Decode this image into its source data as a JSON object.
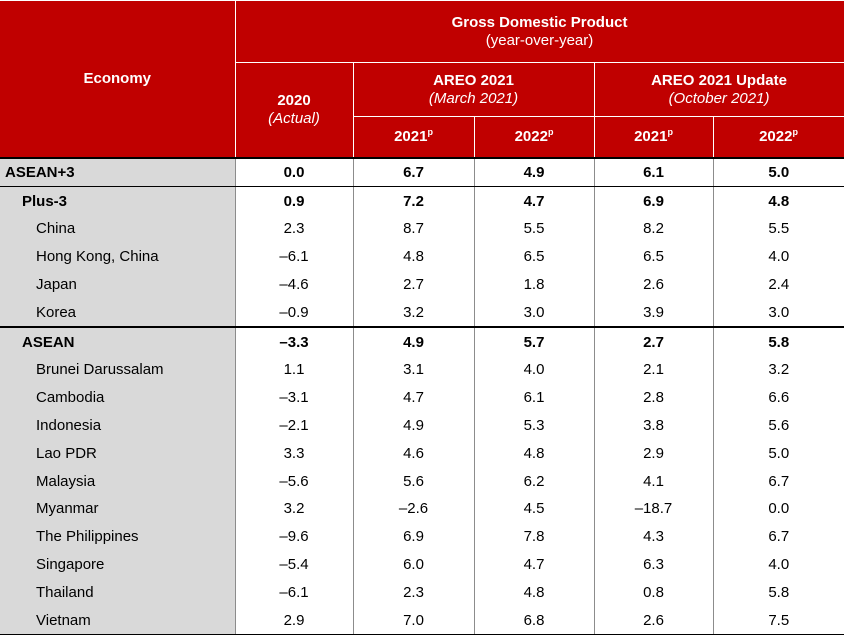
{
  "header": {
    "economy_label": "Economy",
    "gdp_title": "Gross Domestic Product",
    "gdp_subtitle": "(year-over-year)",
    "actual_year": "2020",
    "actual_note": "(Actual)",
    "areo_title": "AREO 2021",
    "areo_date": "(March 2021)",
    "update_title": "AREO 2021 Update",
    "update_date": "(October 2021)",
    "projection_mark": "p",
    "years": [
      "2021",
      "2022",
      "2021",
      "2022"
    ]
  },
  "rows": [
    {
      "economy": "ASEAN+3",
      "values": [
        "0.0",
        "6.7",
        "4.9",
        "6.1",
        "5.0"
      ]
    },
    {
      "economy": "Plus-3",
      "values": [
        "0.9",
        "7.2",
        "4.7",
        "6.9",
        "4.8"
      ]
    },
    {
      "economy": "China",
      "values": [
        "2.3",
        "8.7",
        "5.5",
        "8.2",
        "5.5"
      ]
    },
    {
      "economy": "Hong Kong, China",
      "values": [
        "–6.1",
        "4.8",
        "6.5",
        "6.5",
        "4.0"
      ]
    },
    {
      "economy": "Japan",
      "values": [
        "–4.6",
        "2.7",
        "1.8",
        "2.6",
        "2.4"
      ]
    },
    {
      "economy": "Korea",
      "values": [
        "–0.9",
        "3.2",
        "3.0",
        "3.9",
        "3.0"
      ]
    },
    {
      "economy": "ASEAN",
      "values": [
        "–3.3",
        "4.9",
        "5.7",
        "2.7",
        "5.8"
      ]
    },
    {
      "economy": "Brunei Darussalam",
      "values": [
        "1.1",
        "3.1",
        "4.0",
        "2.1",
        "3.2"
      ]
    },
    {
      "economy": "Cambodia",
      "values": [
        "–3.1",
        "4.7",
        "6.1",
        "2.8",
        "6.6"
      ]
    },
    {
      "economy": "Indonesia",
      "values": [
        "–2.1",
        "4.9",
        "5.3",
        "3.8",
        "5.6"
      ]
    },
    {
      "economy": "Lao PDR",
      "values": [
        "3.3",
        "4.6",
        "4.8",
        "2.9",
        "5.0"
      ]
    },
    {
      "economy": "Malaysia",
      "values": [
        "–5.6",
        "5.6",
        "6.2",
        "4.1",
        "6.7"
      ]
    },
    {
      "economy": "Myanmar",
      "values": [
        "3.2",
        "–2.6",
        "4.5",
        "–18.7",
        "0.0"
      ]
    },
    {
      "economy": "The Philippines",
      "values": [
        "–9.6",
        "6.9",
        "7.8",
        "4.3",
        "6.7"
      ]
    },
    {
      "economy": "Singapore",
      "values": [
        "–5.4",
        "6.0",
        "4.7",
        "6.3",
        "4.0"
      ]
    },
    {
      "economy": "Thailand",
      "values": [
        "–6.1",
        "2.3",
        "4.8",
        "0.8",
        "5.8"
      ]
    },
    {
      "economy": "Vietnam",
      "values": [
        "2.9",
        "7.0",
        "6.8",
        "2.6",
        "7.5"
      ]
    }
  ]
}
